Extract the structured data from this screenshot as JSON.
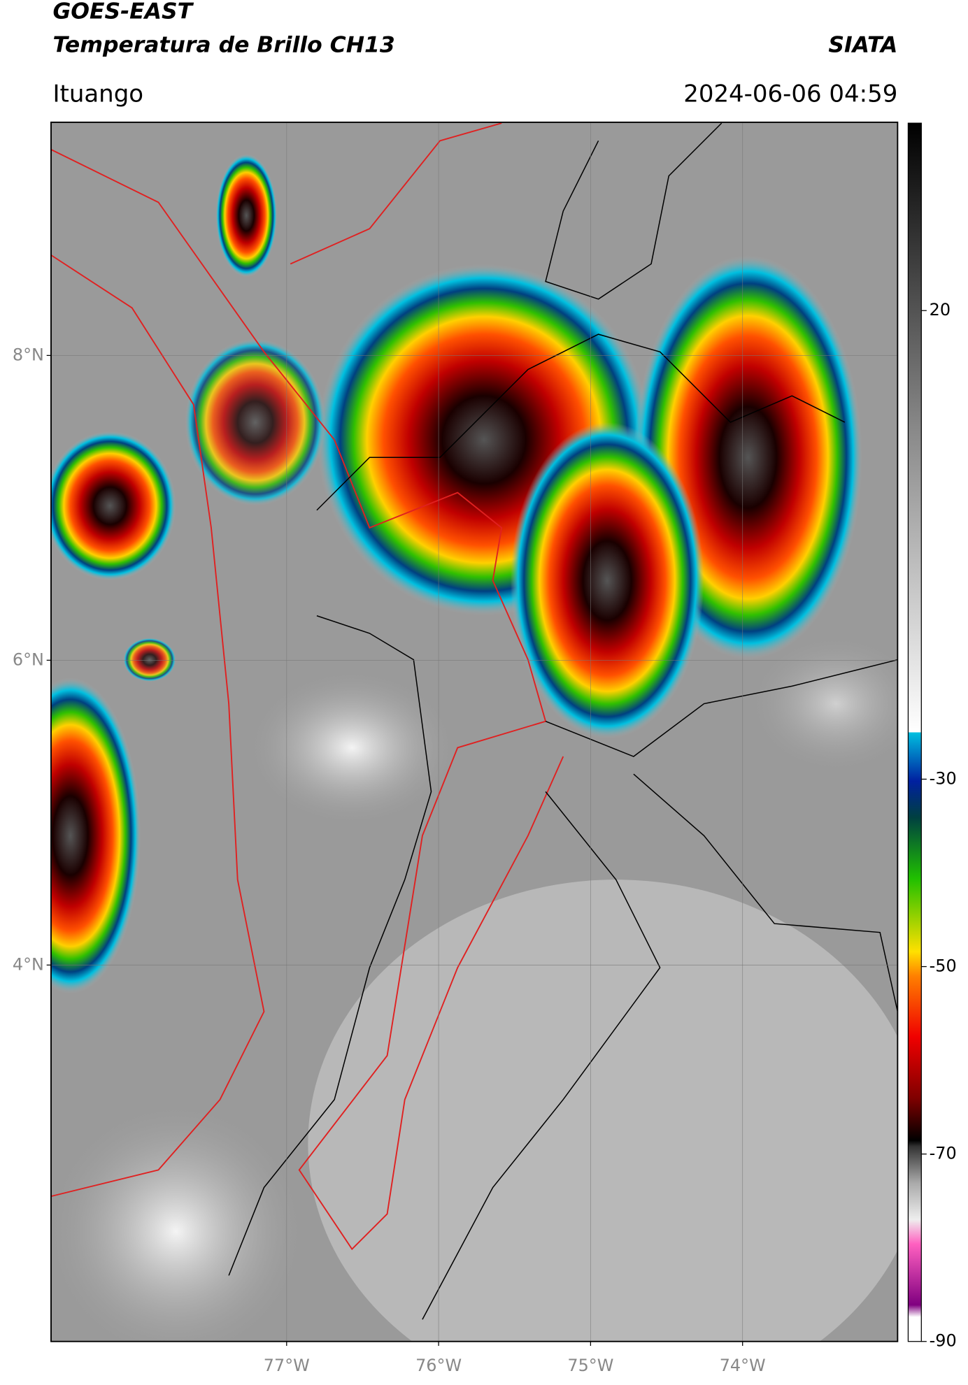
{
  "header": {
    "title_line1": "GOES-EAST",
    "title_line2": "Temperatura de Brillo CH13",
    "source": "SIATA",
    "location": "Ituango",
    "timestamp": "2024-06-06 04:59"
  },
  "map": {
    "lat_range": [
      1.53,
      9.53
    ],
    "lon_range": [
      -78.55,
      -72.98
    ],
    "lat_ticks": [
      {
        "value": 8,
        "label": "8°N"
      },
      {
        "value": 6,
        "label": "6°N"
      },
      {
        "value": 4,
        "label": "4°N"
      }
    ],
    "lon_ticks": [
      {
        "value": -77,
        "label": "77°W"
      },
      {
        "value": -76,
        "label": "76°W"
      },
      {
        "value": -75,
        "label": "75°W"
      },
      {
        "value": -74,
        "label": "74°W"
      }
    ]
  },
  "colorbar": {
    "range": [
      -90,
      40
    ],
    "ticks": [
      20,
      -30,
      -50,
      -70,
      -90
    ]
  }
}
